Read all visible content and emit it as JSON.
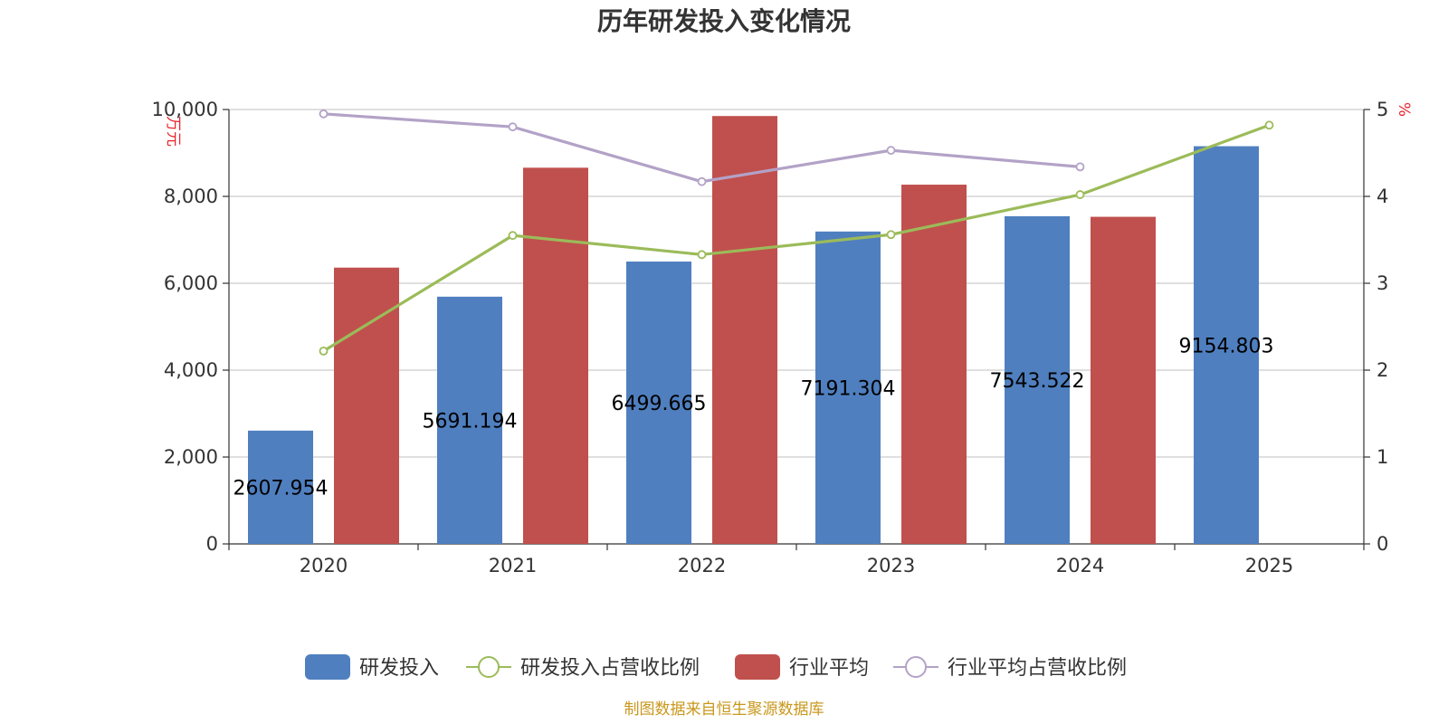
{
  "chart_data": {
    "type": "bar",
    "title": "历年研发投入变化情况",
    "categories": [
      "2020",
      "2021",
      "2022",
      "2023",
      "2024",
      "2025"
    ],
    "y_left": {
      "unit": "万元",
      "min": 0,
      "max": 10000,
      "ticks": [
        "0",
        "2,000",
        "4,000",
        "6,000",
        "8,000",
        "10,000"
      ]
    },
    "y_right": {
      "unit": "%",
      "min": 0,
      "max": 5,
      "ticks": [
        "0",
        "1",
        "2",
        "3",
        "4",
        "5"
      ]
    },
    "grid": true,
    "legend_position": "bottom",
    "series": [
      {
        "name": "研发投入",
        "type": "bar",
        "axis": "left",
        "color": "#4f7fbf",
        "values": [
          2607.954,
          5691.194,
          6499.665,
          7191.304,
          7543.522,
          9154.803
        ],
        "labels": [
          "2607.954",
          "5691.194",
          "6499.665",
          "7191.304",
          "7543.522",
          "9154.803"
        ]
      },
      {
        "name": "研发投入占营收比例",
        "type": "line",
        "axis": "right",
        "color": "#9bbb59",
        "values": [
          2.22,
          3.55,
          3.33,
          3.56,
          4.02,
          4.82
        ]
      },
      {
        "name": "行业平均",
        "type": "bar",
        "axis": "left",
        "color": "#c0504d",
        "values": [
          6360,
          8660,
          9850,
          8270,
          7530,
          null
        ]
      },
      {
        "name": "行业平均占营收比例",
        "type": "line",
        "axis": "right",
        "color": "#b3a2c7",
        "values": [
          4.95,
          4.8,
          4.17,
          4.53,
          4.34,
          null
        ]
      }
    ]
  },
  "source_note": "制图数据来自恒生聚源数据库"
}
